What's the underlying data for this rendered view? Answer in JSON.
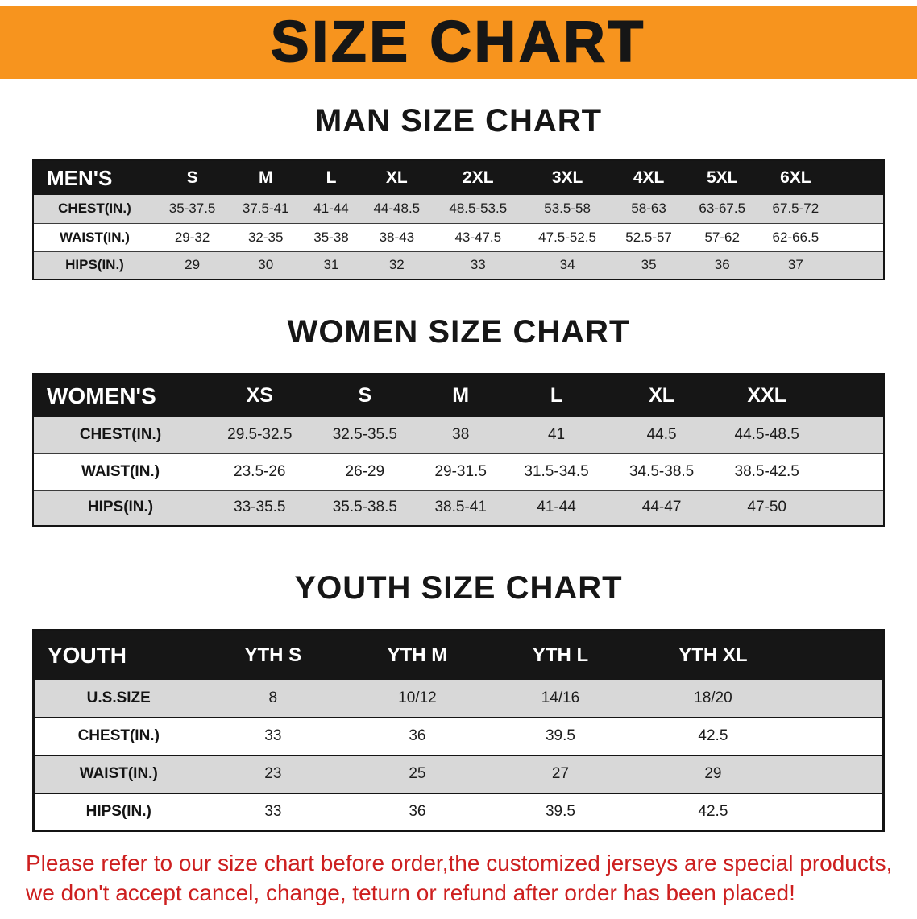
{
  "banner": {
    "title": "SIZE CHART"
  },
  "colors": {
    "banner_bg": "#f7941e",
    "header_bg": "#161616",
    "stripe_row": "#d8d8d8",
    "disclaimer_red": "#cd1f1f"
  },
  "chart_data": [
    {
      "type": "table",
      "title": "MAN SIZE CHART",
      "corner_label": "MEN'S",
      "columns": [
        "S",
        "M",
        "L",
        "XL",
        "2XL",
        "3XL",
        "4XL",
        "5XL",
        "6XL"
      ],
      "rows": [
        {
          "label": "CHEST(IN.)",
          "values": [
            "35-37.5",
            "37.5-41",
            "41-44",
            "44-48.5",
            "48.5-53.5",
            "53.5-58",
            "58-63",
            "63-67.5",
            "67.5-72"
          ]
        },
        {
          "label": "WAIST(IN.)",
          "values": [
            "29-32",
            "32-35",
            "35-38",
            "38-43",
            "43-47.5",
            "47.5-52.5",
            "52.5-57",
            "57-62",
            "62-66.5"
          ]
        },
        {
          "label": "HIPS(IN.)",
          "values": [
            "29",
            "30",
            "31",
            "32",
            "33",
            "34",
            "35",
            "36",
            "37"
          ]
        }
      ]
    },
    {
      "type": "table",
      "title": "WOMEN SIZE CHART",
      "corner_label": "WOMEN'S",
      "columns": [
        "XS",
        "S",
        "M",
        "L",
        "XL",
        "XXL"
      ],
      "rows": [
        {
          "label": "CHEST(IN.)",
          "values": [
            "29.5-32.5",
            "32.5-35.5",
            "38",
            "41",
            "44.5",
            "44.5-48.5"
          ]
        },
        {
          "label": "WAIST(IN.)",
          "values": [
            "23.5-26",
            "26-29",
            "29-31.5",
            "31.5-34.5",
            "34.5-38.5",
            "38.5-42.5"
          ]
        },
        {
          "label": "HIPS(IN.)",
          "values": [
            "33-35.5",
            "35.5-38.5",
            "38.5-41",
            "41-44",
            "44-47",
            "47-50"
          ]
        }
      ]
    },
    {
      "type": "table",
      "title": "YOUTH SIZE CHART",
      "corner_label": "YOUTH",
      "columns": [
        "YTH S",
        "YTH M",
        "YTH L",
        "YTH XL"
      ],
      "rows": [
        {
          "label": "U.S.SIZE",
          "values": [
            "8",
            "10/12",
            "14/16",
            "18/20"
          ]
        },
        {
          "label": "CHEST(IN.)",
          "values": [
            "33",
            "36",
            "39.5",
            "42.5"
          ]
        },
        {
          "label": "WAIST(IN.)",
          "values": [
            "23",
            "25",
            "27",
            "29"
          ]
        },
        {
          "label": "HIPS(IN.)",
          "values": [
            "33",
            "36",
            "39.5",
            "42.5"
          ]
        }
      ]
    }
  ],
  "disclaimer": {
    "lines": [
      "Please refer to our size chart before order,the customized jerseys are special products,",
      "we don't accept cancel, change, teturn or refund after order has been placed!"
    ]
  }
}
